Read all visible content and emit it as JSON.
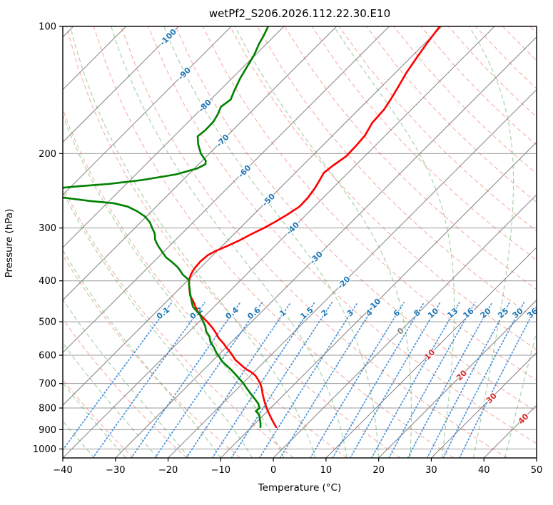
{
  "title": "wetPf2_S206.2026.112.22.30.E10",
  "axes": {
    "xlabel": "Temperature (°C)",
    "ylabel": "Pressure (hPa)",
    "x_ticks": [
      -40,
      -30,
      -20,
      -10,
      0,
      10,
      20,
      30,
      40,
      50
    ],
    "x_tick_labels": [
      "−40",
      "−30",
      "−20",
      "−10",
      "0",
      "10",
      "20",
      "30",
      "40",
      "50"
    ],
    "y_ticks": [
      100,
      200,
      300,
      400,
      500,
      600,
      700,
      800,
      900,
      1000
    ],
    "y_tick_labels": [
      "100",
      "200",
      "300",
      "400",
      "500",
      "600",
      "700",
      "800",
      "900",
      "1000"
    ],
    "xlim": [
      -40,
      50
    ],
    "p_top": 100,
    "p_bottom": 1050,
    "skew_deg": 45
  },
  "palette": {
    "temperature": "#ff0000",
    "dewpoint": "#008000",
    "isotherm": "#8c8c8c",
    "isobar": "#999999",
    "dry_adiabat": "#e8503a",
    "moist_adiabat": "#3d9e3d",
    "mixing_line": "#2b7fd4",
    "label_negative": "#1f77b4",
    "label_zero": "#808080",
    "label_positive": "#d62728",
    "spine": "#000000"
  },
  "chart_data": {
    "type": "line",
    "title": "wetPf2_S206.2026.112.22.30.E10",
    "xlabel": "Temperature (°C)",
    "ylabel": "Pressure (hPa)",
    "xlim": [
      -40,
      50
    ],
    "ylim": [
      1050,
      100
    ],
    "isotherms": [
      -120,
      -110,
      -100,
      -90,
      -80,
      -70,
      -60,
      -50,
      -40,
      -30,
      -20,
      -10,
      0,
      10,
      20,
      30,
      40,
      50
    ],
    "isotherm_labels": [
      {
        "t": -100,
        "text": "-100"
      },
      {
        "t": -90,
        "text": "-90"
      },
      {
        "t": -80,
        "text": "-80"
      },
      {
        "t": -70,
        "text": "-70"
      },
      {
        "t": -60,
        "text": "-60"
      },
      {
        "t": -50,
        "text": "-50"
      },
      {
        "t": -40,
        "text": "-40"
      },
      {
        "t": -30,
        "text": "-30"
      },
      {
        "t": -20,
        "text": "-20"
      },
      {
        "t": -10,
        "text": "-10"
      },
      {
        "t": 0,
        "text": "0"
      },
      {
        "t": 10,
        "text": "10"
      },
      {
        "t": 20,
        "text": "20"
      },
      {
        "t": 30,
        "text": "30"
      },
      {
        "t": 40,
        "text": "40"
      }
    ],
    "dry_adiabats_theta_c": [
      -30,
      -20,
      -10,
      0,
      10,
      20,
      30,
      40,
      50,
      60,
      70,
      80,
      90,
      100,
      110,
      120,
      130,
      140,
      150,
      160,
      170,
      180,
      190,
      200
    ],
    "moist_adiabats_t0_c": [
      -70,
      -64,
      -58,
      -52,
      -46,
      -40,
      -34,
      -28,
      -22,
      -16,
      -10,
      -4,
      2,
      8,
      14,
      20,
      26,
      32,
      38,
      44
    ],
    "mixing_ratio_g_kg": [
      0.1,
      0.2,
      0.4,
      0.6,
      1,
      1.5,
      2,
      3,
      4,
      6,
      8,
      10,
      13,
      16,
      20,
      25,
      30,
      36
    ],
    "mixing_ratio_labels": [
      "0.1",
      "0.2",
      "0.4",
      "0.6",
      "1",
      "1.5",
      "2",
      "3",
      "4",
      "6",
      "8",
      "10",
      "13",
      "16",
      "20",
      "25",
      "30",
      "36"
    ],
    "mixing_label_pressure": 478,
    "mixing_line_p_range": [
      1050,
      450
    ],
    "series": [
      {
        "name": "temperature",
        "color": "#ff0000",
        "points": [
          [
            -50.4,
            100
          ],
          [
            -49.6,
            110
          ],
          [
            -48.7,
            120
          ],
          [
            -47.9,
            129
          ],
          [
            -46.9,
            138
          ],
          [
            -46.0,
            147
          ],
          [
            -45.2,
            157
          ],
          [
            -44.9,
            169
          ],
          [
            -43.9,
            181
          ],
          [
            -43.6,
            192
          ],
          [
            -43.5,
            203
          ],
          [
            -44.2,
            213
          ],
          [
            -44.6,
            222
          ],
          [
            -44.0,
            231
          ],
          [
            -43.4,
            241
          ],
          [
            -42.9,
            254
          ],
          [
            -42.8,
            267
          ],
          [
            -43.6,
            279
          ],
          [
            -44.5,
            290
          ],
          [
            -45.5,
            300
          ],
          [
            -46.8,
            311
          ],
          [
            -47.8,
            321
          ],
          [
            -48.9,
            330
          ],
          [
            -50.3,
            340
          ],
          [
            -51.0,
            348
          ],
          [
            -51.2,
            360
          ],
          [
            -51.0,
            374
          ],
          [
            -50.5,
            387
          ],
          [
            -49.6,
            401
          ],
          [
            -47.9,
            420
          ],
          [
            -46.6,
            434
          ],
          [
            -44.9,
            448
          ],
          [
            -43.6,
            460
          ],
          [
            -42.3,
            472
          ],
          [
            -40.3,
            487
          ],
          [
            -38.3,
            501
          ],
          [
            -36.4,
            516
          ],
          [
            -34.7,
            531
          ],
          [
            -33.1,
            547
          ],
          [
            -31.2,
            563
          ],
          [
            -29.4,
            580
          ],
          [
            -27.6,
            597
          ],
          [
            -25.9,
            615
          ],
          [
            -24.0,
            631
          ],
          [
            -22.1,
            647
          ],
          [
            -20.5,
            658
          ],
          [
            -19.1,
            670
          ],
          [
            -17.9,
            684
          ],
          [
            -16.7,
            699
          ],
          [
            -15.4,
            719
          ],
          [
            -14.2,
            741
          ],
          [
            -12.7,
            767
          ],
          [
            -11.3,
            791
          ],
          [
            -9.8,
            816
          ],
          [
            -8.0,
            845
          ],
          [
            -6.7,
            866
          ],
          [
            -5.3,
            888
          ]
        ]
      },
      {
        "name": "dewpoint",
        "color": "#008000",
        "points": [
          [
            -83.0,
            100
          ],
          [
            -82.1,
            105
          ],
          [
            -81.4,
            110
          ],
          [
            -80.2,
            117
          ],
          [
            -79.4,
            124
          ],
          [
            -78.4,
            133
          ],
          [
            -77.2,
            142
          ],
          [
            -76.2,
            149
          ],
          [
            -76.7,
            155
          ],
          [
            -75.9,
            161
          ],
          [
            -75.3,
            168
          ],
          [
            -75.2,
            176
          ],
          [
            -75.5,
            182
          ],
          [
            -73.9,
            190
          ],
          [
            -71.6,
            200
          ],
          [
            -69.3,
            208
          ],
          [
            -68.7,
            212
          ],
          [
            -69.5,
            217
          ],
          [
            -72.4,
            224
          ],
          [
            -77.7,
            231
          ],
          [
            -83.4,
            236
          ],
          [
            -88.7,
            239
          ],
          [
            -91.5,
            241
          ],
          [
            -93.8,
            246
          ],
          [
            -91.6,
            251
          ],
          [
            -89.6,
            254
          ],
          [
            -83.5,
            259
          ],
          [
            -78.8,
            262
          ],
          [
            -75.4,
            267
          ],
          [
            -72.7,
            274
          ],
          [
            -70.2,
            282
          ],
          [
            -68.2,
            291
          ],
          [
            -66.7,
            300
          ],
          [
            -65.2,
            309
          ],
          [
            -63.9,
            320
          ],
          [
            -62.3,
            330
          ],
          [
            -60.4,
            341
          ],
          [
            -58.5,
            352
          ],
          [
            -56.3,
            362
          ],
          [
            -54.5,
            371
          ],
          [
            -53.2,
            379
          ],
          [
            -52.0,
            387
          ],
          [
            -49.9,
            398
          ],
          [
            -48.6,
            412
          ],
          [
            -47.2,
            427
          ],
          [
            -45.6,
            444
          ],
          [
            -44.0,
            461
          ],
          [
            -41.3,
            480
          ],
          [
            -39.5,
            497
          ],
          [
            -37.9,
            513
          ],
          [
            -36.9,
            526
          ],
          [
            -35.2,
            542
          ],
          [
            -34.0,
            558
          ],
          [
            -32.4,
            574
          ],
          [
            -30.9,
            591
          ],
          [
            -29.4,
            606
          ],
          [
            -27.9,
            622
          ],
          [
            -26.3,
            636
          ],
          [
            -24.6,
            651
          ],
          [
            -22.3,
            674
          ],
          [
            -20.0,
            698
          ],
          [
            -18.0,
            722
          ],
          [
            -16.1,
            745
          ],
          [
            -14.6,
            763
          ],
          [
            -13.2,
            781
          ],
          [
            -12.1,
            800
          ],
          [
            -12.2,
            814
          ],
          [
            -10.9,
            830
          ],
          [
            -9.7,
            855
          ],
          [
            -9.0,
            870
          ],
          [
            -8.3,
            888
          ]
        ]
      }
    ]
  }
}
